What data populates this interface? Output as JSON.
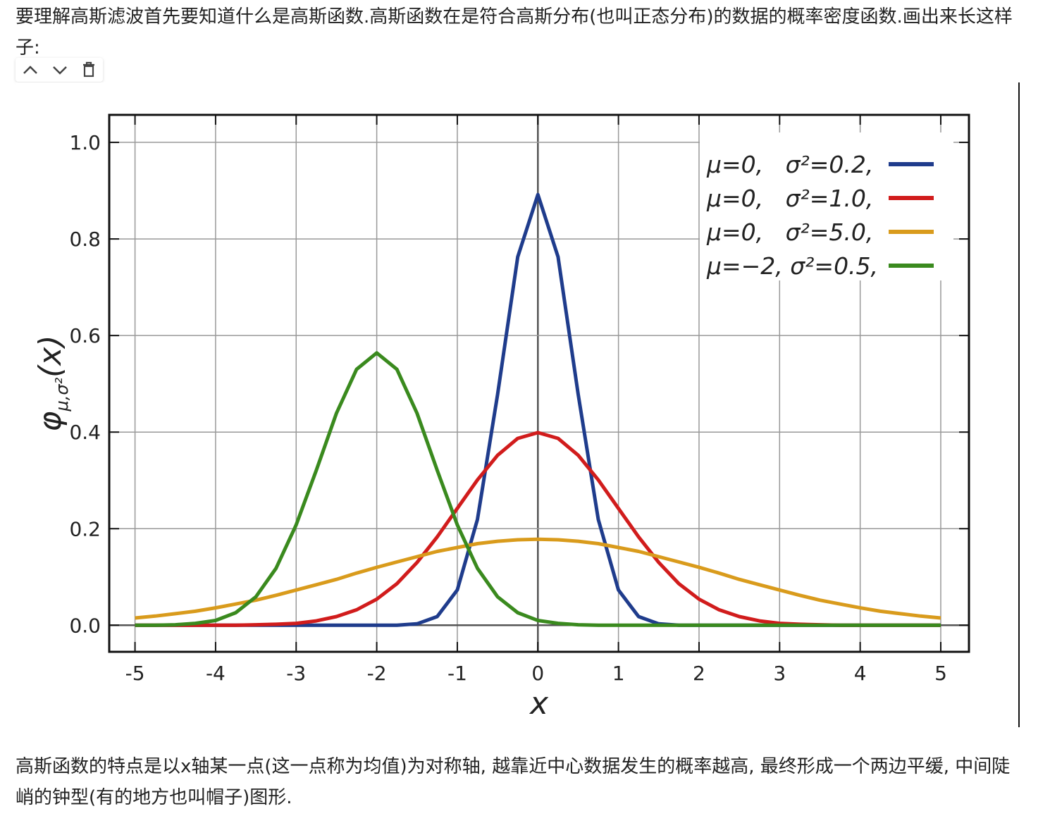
{
  "document": {
    "paragraph_1": "要理解高斯滤波首先要知道什么是高斯函数.高斯函数在是符合高斯分布(也叫正态分布)的数据的概率密度函数.画出来长这样子:",
    "paragraph_2": "高斯函数的特点是以x轴某一点(这一点称为均值)为对称轴, 越靠近中心数据发生的概率越高, 最终形成一个两边平缓, 中间陡峭的钟型(有的地方也叫帽子)图形."
  },
  "chart_data": {
    "type": "line",
    "x_label": "x",
    "y_label": {
      "symbol": "φ",
      "subscript": "μ,σ²",
      "argument": "(x)"
    },
    "x": [
      -5,
      -4.75,
      -4.5,
      -4.25,
      -4,
      -3.75,
      -3.5,
      -3.25,
      -3,
      -2.75,
      -2.5,
      -2.25,
      -2,
      -1.75,
      -1.5,
      -1.25,
      -1,
      -0.75,
      -0.5,
      -0.25,
      0,
      0.25,
      0.5,
      0.75,
      1,
      1.25,
      1.5,
      1.75,
      2,
      2.25,
      2.5,
      2.75,
      3,
      3.25,
      3.5,
      3.75,
      4,
      4.25,
      4.5,
      4.75,
      5
    ],
    "series": [
      {
        "name": "μ=0,   σ²=0.2,",
        "color": "#1f3c8c",
        "values": [
          0,
          0,
          0,
          0,
          0,
          0,
          0,
          0,
          0,
          0,
          0,
          0,
          0,
          0,
          0.003,
          0.018,
          0.073,
          0.219,
          0.478,
          0.763,
          0.892,
          0.763,
          0.478,
          0.219,
          0.073,
          0.018,
          0.003,
          0,
          0,
          0,
          0,
          0,
          0,
          0,
          0,
          0,
          0,
          0,
          0,
          0,
          0
        ]
      },
      {
        "name": "μ=0,   σ²=1.0,",
        "color": "#d11c1c",
        "values": [
          0,
          0,
          0,
          0,
          0,
          0,
          0.001,
          0.002,
          0.004,
          0.009,
          0.018,
          0.032,
          0.054,
          0.086,
          0.13,
          0.183,
          0.242,
          0.301,
          0.352,
          0.387,
          0.399,
          0.387,
          0.352,
          0.301,
          0.242,
          0.183,
          0.13,
          0.086,
          0.054,
          0.032,
          0.018,
          0.009,
          0.004,
          0.002,
          0.001,
          0,
          0,
          0,
          0,
          0,
          0
        ]
      },
      {
        "name": "μ=0,   σ²=5.0,",
        "color": "#d99b1c",
        "values": [
          0.015,
          0.019,
          0.024,
          0.029,
          0.036,
          0.044,
          0.052,
          0.062,
          0.073,
          0.084,
          0.095,
          0.108,
          0.12,
          0.131,
          0.142,
          0.153,
          0.161,
          0.169,
          0.174,
          0.177,
          0.178,
          0.177,
          0.174,
          0.169,
          0.161,
          0.153,
          0.142,
          0.131,
          0.12,
          0.108,
          0.095,
          0.084,
          0.073,
          0.062,
          0.052,
          0.044,
          0.036,
          0.029,
          0.024,
          0.019,
          0.015
        ]
      },
      {
        "name": "μ=−2, σ²=0.5,",
        "color": "#3a8a1e",
        "values": [
          0,
          0,
          0.001,
          0.004,
          0.01,
          0.026,
          0.059,
          0.118,
          0.208,
          0.321,
          0.439,
          0.53,
          0.564,
          0.53,
          0.439,
          0.321,
          0.208,
          0.118,
          0.059,
          0.026,
          0.01,
          0.004,
          0.001,
          0,
          0,
          0,
          0,
          0,
          0,
          0,
          0,
          0,
          0,
          0,
          0,
          0,
          0,
          0,
          0,
          0,
          0
        ]
      }
    ],
    "xlim": [
      -5.32,
      5.35
    ],
    "ylim": [
      -0.055,
      1.057
    ],
    "xticks": [
      -5,
      -4,
      -3,
      -2,
      -1,
      0,
      1,
      2,
      3,
      4,
      5
    ],
    "yticks": [
      {
        "value": 0,
        "label": "0.0"
      },
      0.2,
      0.4,
      0.6,
      0.8,
      {
        "value": 1,
        "label": "1.0"
      }
    ],
    "grid": true,
    "legend": "upper right"
  }
}
